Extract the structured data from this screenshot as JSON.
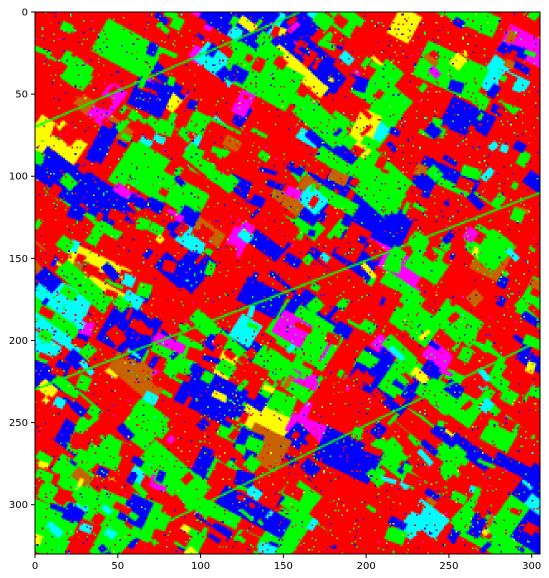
{
  "chart_data": {
    "type": "heatmap",
    "title": "",
    "xlabel": "",
    "ylabel": "",
    "xlim": [
      0,
      305
    ],
    "ylim": [
      330,
      0
    ],
    "grid": false,
    "legend": "none",
    "x_ticks": [
      0,
      50,
      100,
      150,
      200,
      250,
      300
    ],
    "y_ticks": [
      0,
      50,
      100,
      150,
      200,
      250,
      300
    ],
    "x_tick_labels": [
      "0",
      "50",
      "100",
      "150",
      "200",
      "250",
      "300"
    ],
    "y_tick_labels": [
      "0",
      "50",
      "100",
      "150",
      "200",
      "250",
      "300"
    ],
    "colors": {
      "red": "#ff0000",
      "green": "#00ff00",
      "blue": "#0000ff",
      "yellow": "#ffff00",
      "cyan": "#00ffff",
      "magenta": "#ff00ff",
      "brown": "#c86400"
    },
    "class_share": {
      "red": 0.42,
      "green": 0.24,
      "blue": 0.18,
      "yellow": 0.05,
      "cyan": 0.05,
      "magenta": 0.03,
      "brown": 0.03
    },
    "background_class": "red",
    "field_orientation_deg": 33
  }
}
